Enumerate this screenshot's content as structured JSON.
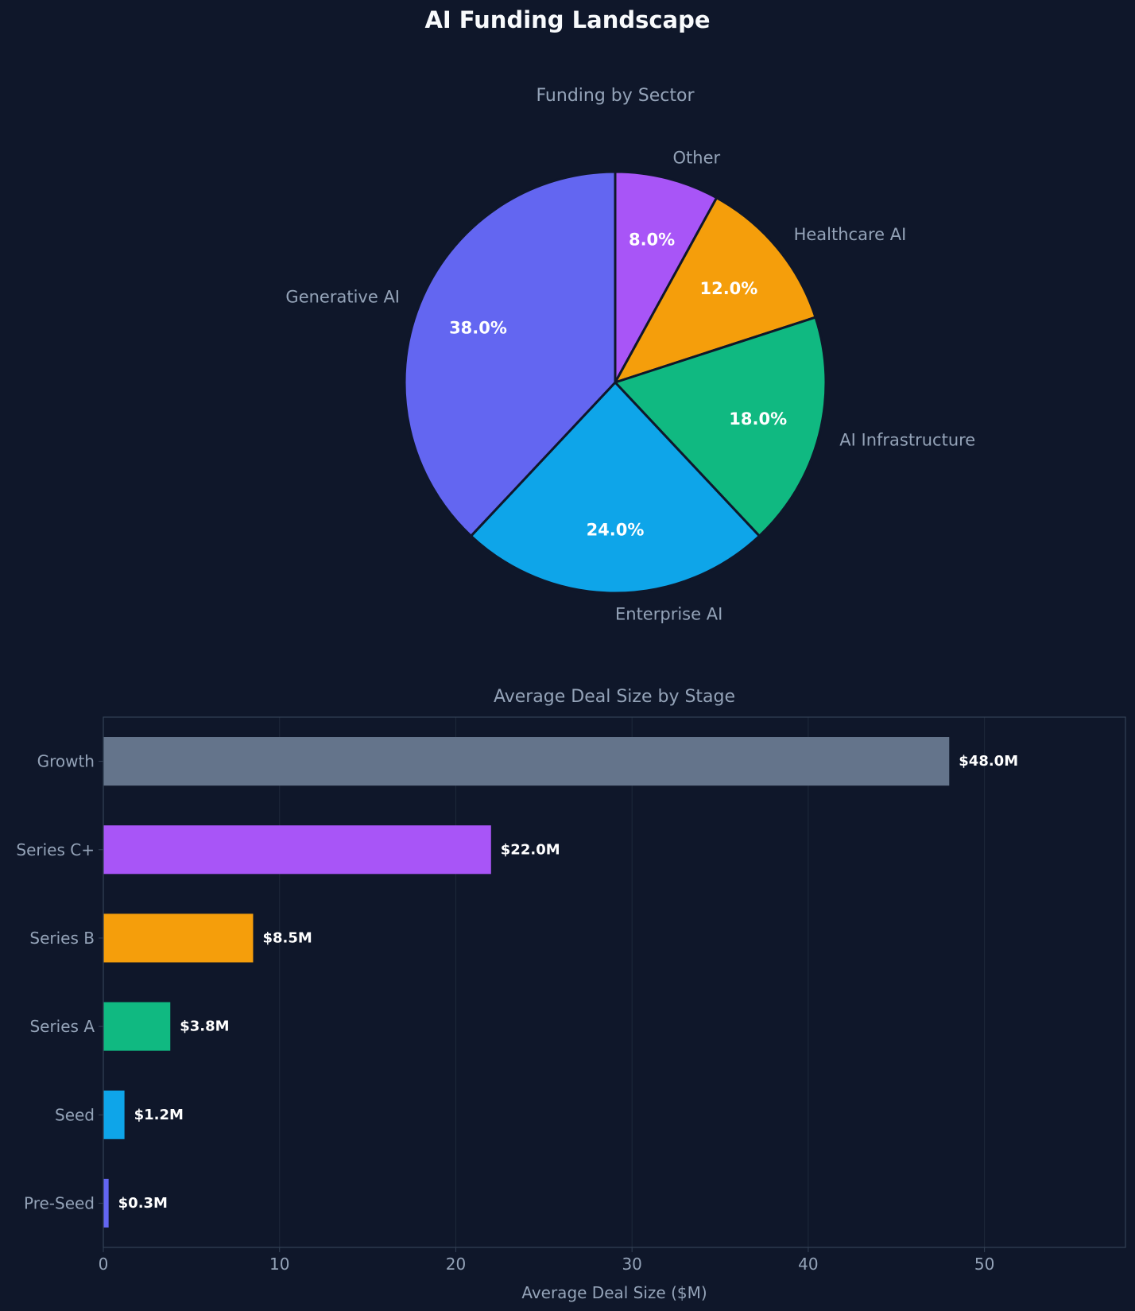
{
  "title": "AI Funding Landscape",
  "colors": {
    "background": "#0f172a",
    "slice_edge": "#0f172a",
    "grid": "#1e293b",
    "spine": "#334155",
    "text_muted": "#94a3b8",
    "text_bright": "#f8fafc"
  },
  "chart_data": [
    {
      "type": "pie",
      "title": "Funding by Sector",
      "start_angle": 90,
      "direction": "clockwise",
      "categories": [
        "Other",
        "Healthcare AI",
        "AI Infrastructure",
        "Enterprise AI",
        "Generative AI"
      ],
      "values": [
        8.0,
        12.0,
        18.0,
        24.0,
        38.0
      ],
      "value_labels": [
        "8.0%",
        "12.0%",
        "18.0%",
        "24.0%",
        "38.0%"
      ],
      "colors": [
        "#a855f7",
        "#f59e0b",
        "#10b981",
        "#0ea5e9",
        "#6366f1"
      ]
    },
    {
      "type": "bar",
      "orientation": "horizontal",
      "title": "Average Deal Size by Stage",
      "xlabel": "Average Deal Size ($M)",
      "ylabel": "",
      "categories": [
        "Growth",
        "Series C+",
        "Series B",
        "Series A",
        "Seed",
        "Pre-Seed"
      ],
      "values": [
        48.0,
        22.0,
        8.5,
        3.8,
        1.2,
        0.3
      ],
      "value_labels": [
        "$48.0M",
        "$22.0M",
        "$8.5M",
        "$3.8M",
        "$1.2M",
        "$0.3M"
      ],
      "colors": [
        "#64748b",
        "#a855f7",
        "#f59e0b",
        "#10b981",
        "#0ea5e9",
        "#6366f1"
      ],
      "xlim": [
        0,
        58
      ],
      "xticks": [
        0,
        10,
        20,
        30,
        40,
        50
      ],
      "grid": "vertical"
    }
  ]
}
